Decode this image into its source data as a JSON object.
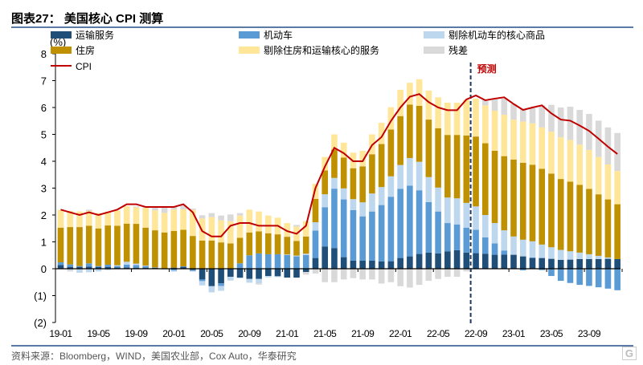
{
  "title": "图表27：  美国核心 CPI 测算",
  "source": "资料来源：Bloomberg，WIND，美国农业部，Cox Auto，华泰研究",
  "logo": "格隆汇",
  "chart_data": {
    "type": "bar",
    "stacked": true,
    "ylabel": "(%)",
    "ylim": [
      -2,
      8
    ],
    "yticks": [
      "(2)",
      "(1)",
      "0",
      "1",
      "2",
      "3",
      "4",
      "5",
      "6",
      "7",
      "8"
    ],
    "xtick_labels": [
      "19-01",
      "19-05",
      "19-09",
      "20-01",
      "20-05",
      "20-09",
      "21-01",
      "21-05",
      "21-09",
      "22-01",
      "22-05",
      "22-09",
      "23-01",
      "23-05",
      "23-09"
    ],
    "forecast_label": "预测",
    "forecast_start": "22-09",
    "categories": [
      "19-01",
      "19-02",
      "19-03",
      "19-04",
      "19-05",
      "19-06",
      "19-07",
      "19-08",
      "19-09",
      "19-10",
      "19-11",
      "19-12",
      "20-01",
      "20-02",
      "20-03",
      "20-04",
      "20-05",
      "20-06",
      "20-07",
      "20-08",
      "20-09",
      "20-10",
      "20-11",
      "20-12",
      "21-01",
      "21-02",
      "21-03",
      "21-04",
      "21-05",
      "21-06",
      "21-07",
      "21-08",
      "21-09",
      "21-10",
      "21-11",
      "21-12",
      "22-01",
      "22-02",
      "22-03",
      "22-04",
      "22-05",
      "22-06",
      "22-07",
      "22-08",
      "22-09",
      "22-10",
      "22-11",
      "22-12",
      "23-01",
      "23-02",
      "23-03",
      "23-04",
      "23-05",
      "23-06",
      "23-07",
      "23-08",
      "23-09",
      "23-10",
      "23-11",
      "23-12"
    ],
    "series": [
      {
        "name": "运输服务",
        "color": "#1F4E79",
        "values": [
          0.14,
          0.07,
          0.07,
          0.08,
          0.06,
          0.07,
          0.05,
          0.05,
          0.04,
          0.04,
          0.04,
          0,
          0.04,
          0.07,
          -0.05,
          -0.4,
          -0.65,
          -0.54,
          -0.3,
          -0.33,
          -0.38,
          -0.38,
          -0.27,
          -0.28,
          -0.33,
          -0.33,
          -0.12,
          0.4,
          0.83,
          0.77,
          0.43,
          0.3,
          0.3,
          0.3,
          0.27,
          0.28,
          0.4,
          0.46,
          0.55,
          0.6,
          0.57,
          0.65,
          0.69,
          0.6,
          0.58,
          0.56,
          0.52,
          0.53,
          0.52,
          0.46,
          0.4,
          0.4,
          0.37,
          0.33,
          0.34,
          0.36,
          0.36,
          0.36,
          0.37,
          0.36
        ]
      },
      {
        "name": "机动车",
        "color": "#5B9BD5",
        "values": [
          0.1,
          0.09,
          0.03,
          0.12,
          0.04,
          0.08,
          0.05,
          0.1,
          0.1,
          0.06,
          0,
          0,
          -0.06,
          0.02,
          -0.03,
          -0.06,
          0,
          -0.1,
          0,
          0.2,
          0.5,
          0.57,
          0.54,
          0.54,
          0.51,
          0.46,
          0.51,
          1.02,
          1.46,
          2.21,
          2.15,
          1.88,
          1.65,
          1.83,
          2.1,
          2.4,
          2.57,
          2.63,
          2.37,
          1.88,
          1.56,
          1.05,
          0.96,
          0.93,
          0.87,
          0.61,
          0.42,
          0.15,
          0,
          -0.06,
          0.02,
          -0.05,
          -0.27,
          -0.45,
          -0.53,
          -0.6,
          -0.64,
          -0.69,
          -0.74,
          -0.8
        ]
      },
      {
        "name": "剔除机动车的核心商品",
        "color": "#BDD7EE",
        "values": [
          0,
          -0.05,
          -0.15,
          -0.13,
          -0.1,
          -0.05,
          0.03,
          0.11,
          0.05,
          0.02,
          0.01,
          -0.03,
          -0.05,
          -0.02,
          -0.03,
          -0.16,
          -0.23,
          -0.18,
          -0.14,
          -0.03,
          -0.14,
          -0.16,
          -0.05,
          -0.03,
          0.02,
          0.03,
          0.05,
          0.31,
          0.48,
          0.4,
          0.41,
          0.41,
          0.52,
          0.67,
          0.67,
          0.76,
          0.89,
          1.03,
          1.06,
          0.93,
          0.89,
          0.95,
          0.97,
          0.92,
          0.87,
          0.83,
          0.76,
          0.75,
          0.68,
          0.62,
          0.6,
          0.5,
          0.43,
          0.37,
          0.31,
          0.24,
          0.18,
          0.12,
          0.05,
          0
        ]
      },
      {
        "name": "住房",
        "color": "#BF9000",
        "values": [
          1.29,
          1.39,
          1.45,
          1.4,
          1.4,
          1.46,
          1.47,
          1.42,
          1.48,
          1.41,
          1.38,
          1.35,
          1.37,
          1.36,
          1.22,
          1.05,
          1.05,
          0.98,
          0.94,
          0.95,
          0.85,
          0.82,
          0.78,
          0.74,
          0.66,
          0.54,
          0.64,
          0.87,
          0.89,
          1.06,
          1.15,
          1.15,
          1.34,
          1.46,
          1.6,
          1.74,
          1.82,
          1.99,
          2.08,
          2.14,
          2.21,
          2.33,
          2.36,
          2.51,
          2.6,
          2.67,
          2.69,
          2.76,
          2.86,
          2.86,
          2.85,
          2.82,
          2.74,
          2.64,
          2.59,
          2.52,
          2.43,
          2.29,
          2.16,
          2.04
        ]
      },
      {
        "name": "剔除住房和运输核心的服务",
        "color": "#FFE699",
        "values": [
          0.66,
          0.6,
          0.58,
          0.55,
          0.57,
          0.52,
          0.57,
          0.65,
          0.62,
          0.74,
          0.74,
          0.73,
          0.79,
          0.76,
          0.97,
          0.82,
          0.87,
          0.82,
          0.83,
          0.83,
          0.85,
          0.74,
          0.66,
          0.62,
          0.51,
          0.54,
          0.57,
          0.56,
          0.5,
          0.56,
          0.55,
          0.58,
          0.58,
          0.74,
          0.79,
          0.83,
          0.98,
          0.81,
          0.99,
          1.08,
          1.15,
          1.2,
          1.2,
          1.32,
          1.41,
          1.41,
          1.49,
          1.54,
          1.49,
          1.54,
          1.54,
          1.54,
          1.56,
          1.55,
          1.55,
          1.5,
          1.45,
          1.39,
          1.3,
          1.24
        ]
      },
      {
        "name": "残差",
        "color": "#D9D9D9",
        "values": [
          0,
          -0.05,
          0,
          0.05,
          0,
          0,
          0,
          0,
          0.03,
          0.02,
          0.1,
          0.2,
          0.1,
          0.15,
          0.05,
          0.12,
          0.15,
          0.18,
          0.25,
          0.09,
          0,
          -0.05,
          0,
          0,
          0,
          0.06,
          -0.1,
          -0.18,
          -0.5,
          -0.5,
          -0.4,
          -0.35,
          -0.4,
          -0.4,
          -0.55,
          -0.5,
          -0.65,
          -0.7,
          -0.6,
          -0.45,
          -0.38,
          -0.3,
          -0.3,
          -0.1,
          0,
          0.2,
          0.45,
          0.6,
          0.58,
          0.45,
          0.57,
          0.82,
          1.0,
          1.11,
          1.24,
          1.29,
          1.34,
          1.35,
          1.38,
          1.41
        ]
      }
    ],
    "line": {
      "name": "CPI",
      "color": "#C00000",
      "values": [
        2.2,
        2.1,
        2.0,
        2.1,
        2.0,
        2.1,
        2.2,
        2.4,
        2.4,
        2.3,
        2.3,
        2.3,
        2.3,
        2.4,
        2.1,
        1.4,
        1.2,
        1.2,
        1.6,
        1.7,
        1.7,
        1.6,
        1.6,
        1.6,
        1.4,
        1.3,
        1.6,
        3.0,
        3.8,
        4.5,
        4.3,
        4.0,
        4.0,
        4.6,
        4.9,
        5.5,
        6.0,
        6.4,
        6.5,
        6.2,
        6.0,
        5.9,
        5.9,
        6.3,
        6.45,
        6.27,
        6.33,
        6.38,
        6.13,
        5.91,
        6.0,
        6.08,
        5.78,
        5.55,
        5.51,
        5.33,
        5.13,
        4.84,
        4.54,
        4.27
      ]
    },
    "legend_position": "top"
  }
}
